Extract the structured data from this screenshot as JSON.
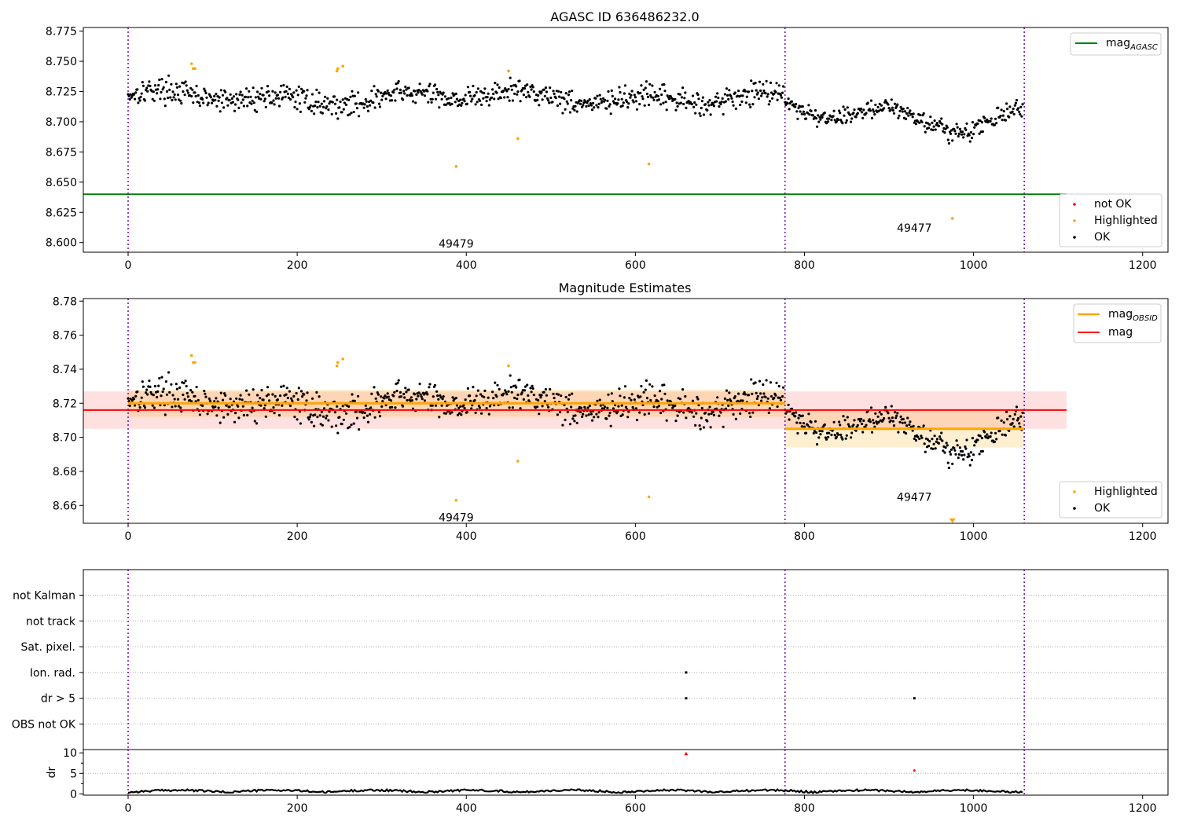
{
  "chart_data": [
    {
      "type": "scatter",
      "title": "AGASC ID 636486232.0",
      "xlim": [
        -53,
        1230
      ],
      "ylim": [
        8.592,
        8.778
      ],
      "xticks": [
        0,
        200,
        400,
        600,
        800,
        1000,
        1200
      ],
      "yticks": [
        8.6,
        8.625,
        8.65,
        8.675,
        8.7,
        8.725,
        8.75,
        8.775
      ],
      "yticklabels": [
        "8.600",
        "8.625",
        "8.650",
        "8.675",
        "8.700",
        "8.725",
        "8.750",
        "8.775"
      ],
      "series_ok": {
        "name": "OK",
        "color": "#000000",
        "segments": [
          {
            "x_start": 0,
            "x_end": 775,
            "level": 8.72,
            "amplitude": 0.006,
            "noise": 0.006
          },
          {
            "x_start": 777,
            "x_end": 1058,
            "level": 8.705,
            "amplitude": 0.012,
            "noise": 0.005
          }
        ]
      },
      "highlighted": {
        "name": "Highlighted",
        "color": "#ffa500",
        "x": [
          75,
          77,
          79,
          247,
          248,
          254,
          388,
          450,
          461,
          616,
          975
        ],
        "y": [
          8.748,
          8.744,
          8.744,
          8.742,
          8.744,
          8.746,
          8.663,
          8.742,
          8.686,
          8.665,
          8.62
        ]
      },
      "not_ok": {
        "name": "not OK",
        "color": "#ff0000"
      },
      "agasc_mag": {
        "name": "mag",
        "subscript": "AGASC",
        "value": 8.64,
        "x_end": 1110,
        "color": "#008000"
      },
      "obsid_bounds": [
        0,
        777,
        1060
      ],
      "obsid_labels": [
        {
          "text": "49479",
          "x": 388,
          "y": 8.599
        },
        {
          "text": "49477",
          "x": 930,
          "y": 8.612
        }
      ],
      "legend_lines": [
        {
          "label": "mag",
          "subscript": "AGASC",
          "color": "#008000"
        }
      ],
      "legend_points": [
        {
          "label": "not OK",
          "color": "#ff0000"
        },
        {
          "label": "Highlighted",
          "color": "#ffa500"
        },
        {
          "label": "OK",
          "color": "#000000"
        }
      ]
    },
    {
      "type": "scatter",
      "title": "Magnitude Estimates",
      "xlim": [
        -53,
        1230
      ],
      "ylim": [
        8.6495,
        8.7815
      ],
      "xticks": [
        0,
        200,
        400,
        600,
        800,
        1000,
        1200
      ],
      "yticks": [
        8.66,
        8.68,
        8.7,
        8.72,
        8.74,
        8.76,
        8.78
      ],
      "yticklabels": [
        "8.66",
        "8.68",
        "8.70",
        "8.72",
        "8.74",
        "8.76",
        "8.78"
      ],
      "mag": {
        "name": "mag",
        "value": 8.716,
        "band": [
          8.705,
          8.727
        ],
        "x_end": 1110,
        "color": "#ff0000"
      },
      "mag_obsid": {
        "name": "mag",
        "subscript": "OBSID",
        "color": "#ffa500",
        "segments": [
          {
            "x_start": 0,
            "x_end": 777,
            "value": 8.72,
            "band": [
              8.712,
              8.728
            ]
          },
          {
            "x_start": 777,
            "x_end": 1060,
            "value": 8.705,
            "band": [
              8.694,
              8.716
            ]
          }
        ]
      },
      "highlighted_low": {
        "x": 975,
        "y": 8.651
      },
      "obsid_labels": [
        {
          "text": "49479",
          "x": 388,
          "y": 8.653
        },
        {
          "text": "49477",
          "x": 930,
          "y": 8.665
        }
      ],
      "legend_lines": [
        {
          "label": "mag",
          "subscript": "OBSID",
          "color": "#ffa500"
        },
        {
          "label": "mag",
          "subscript": "",
          "color": "#ff0000"
        }
      ],
      "legend_points": [
        {
          "label": "Highlighted",
          "color": "#ffa500"
        },
        {
          "label": "OK",
          "color": "#000000"
        }
      ]
    },
    {
      "type": "scatter",
      "title": "",
      "xlim": [
        -53,
        1230
      ],
      "categories": [
        "OBS not OK",
        "dr > 5",
        "Ion. rad.",
        "Sat. pixel.",
        "not track",
        "not Kalman"
      ],
      "flags": [
        {
          "category": "Ion. rad.",
          "x": [
            660
          ]
        },
        {
          "category": "dr > 5",
          "x": [
            660,
            930
          ]
        }
      ],
      "grid": true
    },
    {
      "type": "line",
      "ylabel": "dr",
      "xlim": [
        -53,
        1230
      ],
      "ylim": [
        -0.3,
        10.8
      ],
      "xticks": [
        0,
        200,
        400,
        600,
        800,
        1000,
        1200
      ],
      "yticks": [
        0,
        5,
        10
      ],
      "dr_base": 0.4,
      "dr_outliers": [
        {
          "x": 660,
          "y": 9.8,
          "color": "#ff0000"
        },
        {
          "x": 930,
          "y": 5.7,
          "color": "#ff0000"
        }
      ]
    }
  ]
}
